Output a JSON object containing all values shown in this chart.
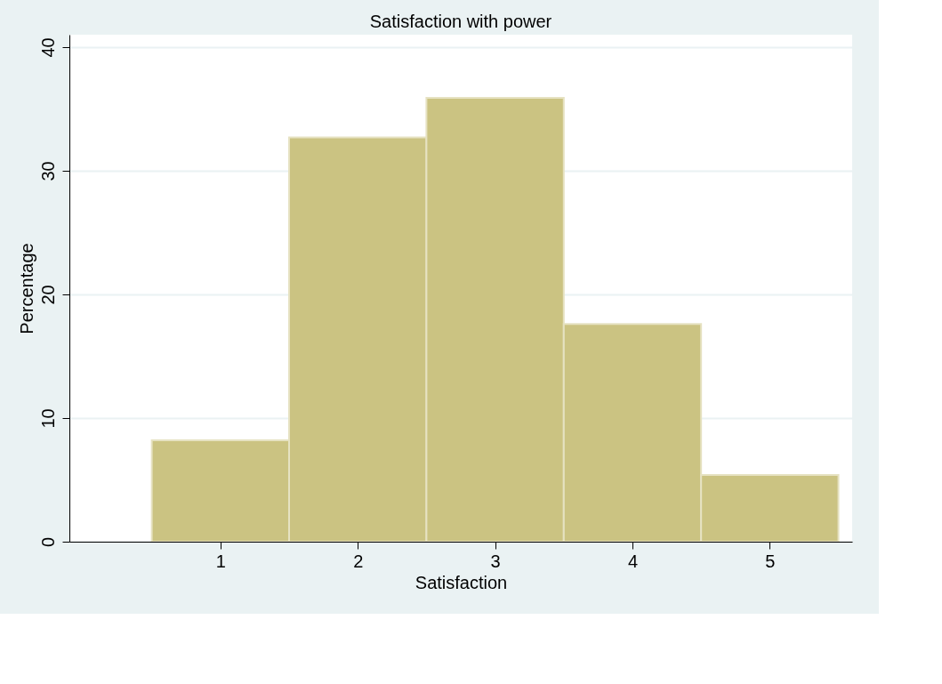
{
  "chart_data": {
    "type": "histogram",
    "title": "Satisfaction with power",
    "xlabel": "Satisfaction",
    "ylabel": "Percentage",
    "bins": [
      0.5,
      1.5,
      2.5,
      3.5,
      4.5,
      5.5
    ],
    "values": [
      8.2,
      32.7,
      35.9,
      17.6,
      5.4
    ],
    "color": "#cbc382",
    "xlim": [
      -0.1,
      5.6
    ],
    "xticks": [
      1,
      2,
      3,
      4,
      5
    ],
    "ylim": [
      0,
      41
    ],
    "yticks": [
      0,
      10,
      20,
      30,
      40
    ],
    "grid": "y"
  }
}
